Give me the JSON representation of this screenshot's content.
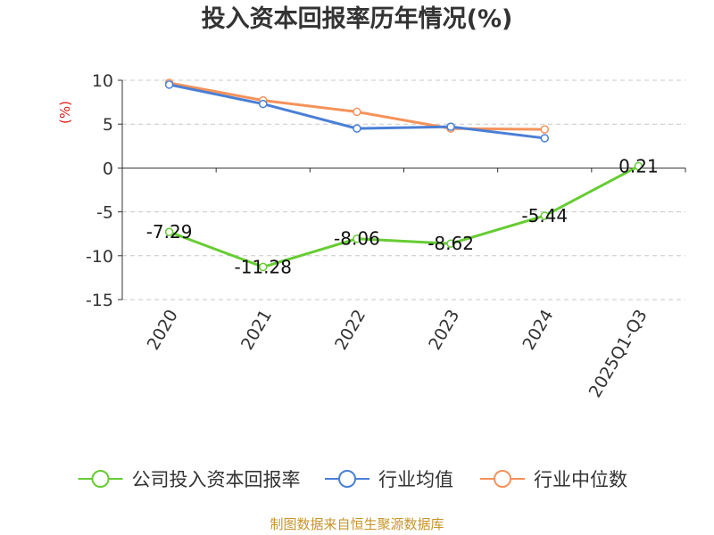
{
  "chart_data": {
    "type": "line",
    "title": "投入资本回报率历年情况(%)",
    "ylabel": "(%)",
    "xlabel": "",
    "categories": [
      "2020",
      "2021",
      "2022",
      "2023",
      "2024",
      "2025Q1-Q3"
    ],
    "ylim": [
      -15,
      10
    ],
    "yticks": [
      10,
      5,
      0,
      -5,
      -10,
      -15
    ],
    "grid": true,
    "legend_position": "bottom",
    "series": [
      {
        "name": "公司投入资本回报率",
        "color": "#66cc33",
        "values": [
          -7.29,
          -11.28,
          -8.06,
          -8.62,
          -5.44,
          0.21
        ],
        "labels": [
          "-7.29",
          "-11.28",
          "-8.06",
          "-8.62",
          "-5.44",
          "0.21"
        ]
      },
      {
        "name": "行业均值",
        "color": "#4a7fd6",
        "values": [
          9.5,
          7.3,
          4.5,
          4.7,
          3.4,
          null
        ]
      },
      {
        "name": "行业中位数",
        "color": "#f5925a",
        "values": [
          9.7,
          7.7,
          6.4,
          4.5,
          4.4,
          null
        ]
      }
    ]
  },
  "source": "制图数据来自恒生聚源数据库"
}
